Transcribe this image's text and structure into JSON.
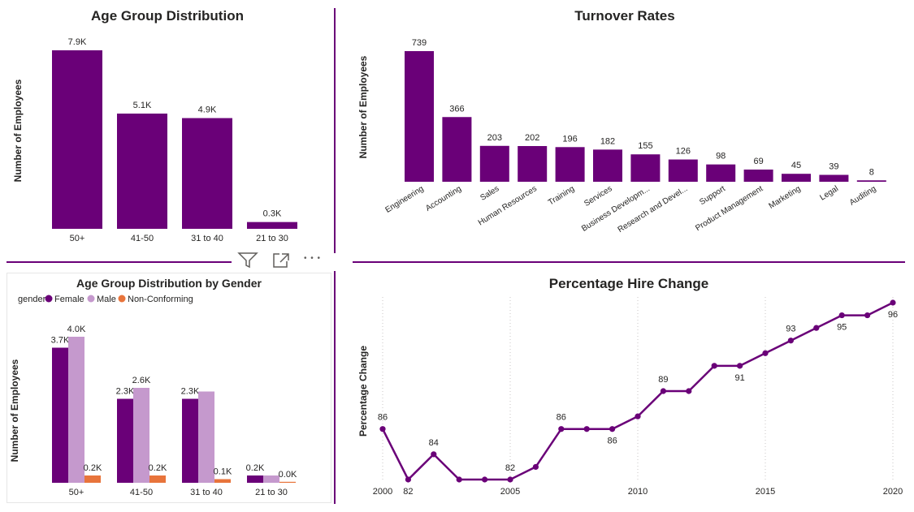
{
  "colors": {
    "primary": "#6a0078",
    "female": "#6a0078",
    "male": "#c599cd",
    "nonconforming": "#e8743b",
    "divider": "#6a0078",
    "text": "#252423",
    "label": "#605e5c"
  },
  "toolbar": {
    "filter_icon": "filter-icon",
    "focus_icon": "focus-mode-icon",
    "more_label": "• • •"
  },
  "chart_data": [
    {
      "id": "age",
      "type": "bar",
      "title": "Age Group Distribution",
      "ylabel": "Number of Employees",
      "categories": [
        "50+",
        "41-50",
        "31 to 40",
        "21 to 30"
      ],
      "values": [
        7.9,
        5.1,
        4.9,
        0.3
      ],
      "data_labels": [
        "7.9K",
        "5.1K",
        "4.9K",
        "0.3K"
      ],
      "ylim": [
        0,
        7.9
      ]
    },
    {
      "id": "turnover",
      "type": "bar",
      "title": "Turnover Rates",
      "ylabel": "Number of Employees",
      "categories": [
        "Engineering",
        "Accounting",
        "Sales",
        "Human Resources",
        "Training",
        "Services",
        "Business Developm...",
        "Research and Devel...",
        "Support",
        "Product Management",
        "Marketing",
        "Legal",
        "Auditing"
      ],
      "values": [
        739,
        366,
        203,
        202,
        196,
        182,
        155,
        126,
        98,
        69,
        45,
        39,
        8
      ],
      "ylim": [
        0,
        739
      ]
    },
    {
      "id": "gender",
      "type": "bar",
      "title": "Age Group Distribution by Gender",
      "ylabel": "Number of Employees",
      "legend_title": "gender",
      "legend_position": "top-left",
      "categories": [
        "50+",
        "41-50",
        "31 to 40",
        "21 to 30"
      ],
      "series": [
        {
          "name": "Female",
          "values": [
            3.7,
            2.3,
            2.3,
            0.2
          ],
          "labels": [
            "3.7K",
            "2.3K",
            "2.3K",
            "0.2K"
          ]
        },
        {
          "name": "Male",
          "values": [
            4.0,
            2.6,
            2.5,
            0.2
          ],
          "labels": [
            "4.0K",
            "2.6K",
            "",
            ""
          ]
        },
        {
          "name": "Non-Conforming",
          "values": [
            0.2,
            0.2,
            0.1,
            0.0
          ],
          "labels": [
            "0.2K",
            "0.2K",
            "0.1K",
            "0.0K"
          ]
        }
      ],
      "ylim": [
        0,
        4.0
      ]
    },
    {
      "id": "hire",
      "type": "line",
      "title": "Percentage Hire Change",
      "ylabel": "Percentage Change",
      "x": [
        2000,
        2001,
        2002,
        2003,
        2004,
        2005,
        2006,
        2007,
        2008,
        2009,
        2010,
        2011,
        2012,
        2013,
        2014,
        2015,
        2016,
        2017,
        2018,
        2019,
        2020
      ],
      "values": [
        86,
        82,
        84,
        82,
        82,
        82,
        83,
        86,
        86,
        86,
        87,
        89,
        89,
        91,
        91,
        92,
        93,
        94,
        95,
        95,
        96
      ],
      "data_labels": [
        {
          "x": 2000,
          "text": "86"
        },
        {
          "x": 2001,
          "text": "82"
        },
        {
          "x": 2002,
          "text": "84"
        },
        {
          "x": 2005,
          "text": "82"
        },
        {
          "x": 2007,
          "text": "86"
        },
        {
          "x": 2009,
          "text": "86"
        },
        {
          "x": 2011,
          "text": "89"
        },
        {
          "x": 2014,
          "text": "91"
        },
        {
          "x": 2016,
          "text": "93"
        },
        {
          "x": 2018,
          "text": "95"
        },
        {
          "x": 2020,
          "text": "96"
        }
      ],
      "xticks": [
        "2000",
        "2005",
        "2010",
        "2015",
        "2020"
      ],
      "xlim": [
        2000,
        2020
      ],
      "ylim": [
        82,
        96
      ],
      "grid": "vertical-dotted"
    }
  ]
}
